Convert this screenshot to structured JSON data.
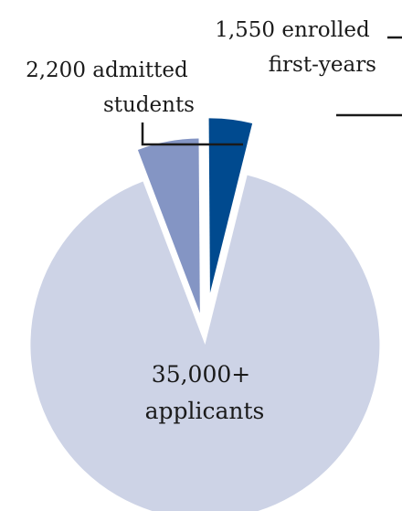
{
  "chart_data": {
    "type": "pie",
    "slices": [
      {
        "label_lines": [
          "35,000+",
          "applicants"
        ],
        "value": 35000,
        "color": "#cdd3e6"
      },
      {
        "label_lines": [
          "2,200 admitted",
          "students"
        ],
        "value": 2200,
        "color": "#8495c4"
      },
      {
        "label_lines": [
          "1,550 enrolled",
          "first-years"
        ],
        "value": 1550,
        "color": "#004a8f"
      }
    ],
    "exploded": true,
    "legend": "none"
  }
}
